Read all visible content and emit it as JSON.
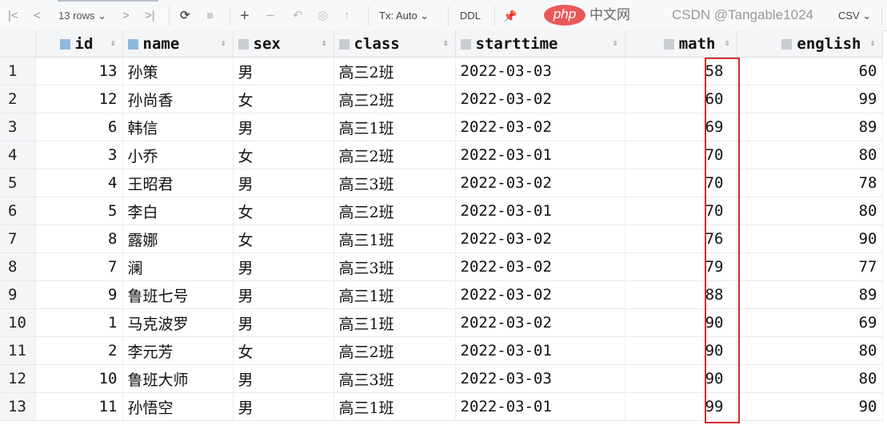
{
  "toolbar": {
    "first": "|<",
    "prev": "<",
    "rows": "13 rows ⌄",
    "next": ">",
    "last": ">|",
    "refresh": "⟳",
    "stop": "■",
    "add": "+",
    "remove": "−",
    "revert": "↶",
    "preview": "◎",
    "submit": "↑",
    "tx": "Tx: Auto ⌄",
    "ddl": "DDL",
    "pin": "📌",
    "export": "CSV ⌄"
  },
  "columns": [
    "id",
    "name",
    "sex",
    "class",
    "starttime",
    "math",
    "english"
  ],
  "rows": [
    [
      "1",
      "13",
      "孙策",
      "男",
      "高三2班",
      "2022-03-03",
      "58",
      "60"
    ],
    [
      "2",
      "12",
      "孙尚香",
      "女",
      "高三2班",
      "2022-03-02",
      "60",
      "99"
    ],
    [
      "3",
      "6",
      "韩信",
      "男",
      "高三1班",
      "2022-03-02",
      "69",
      "89"
    ],
    [
      "4",
      "3",
      "小乔",
      "女",
      "高三2班",
      "2022-03-01",
      "70",
      "80"
    ],
    [
      "5",
      "4",
      "王昭君",
      "男",
      "高三3班",
      "2022-03-02",
      "70",
      "78"
    ],
    [
      "6",
      "5",
      "李白",
      "女",
      "高三2班",
      "2022-03-01",
      "70",
      "80"
    ],
    [
      "7",
      "8",
      "露娜",
      "女",
      "高三1班",
      "2022-03-02",
      "76",
      "90"
    ],
    [
      "8",
      "7",
      "澜",
      "男",
      "高三3班",
      "2022-03-02",
      "79",
      "77"
    ],
    [
      "9",
      "9",
      "鲁班七号",
      "男",
      "高三1班",
      "2022-03-02",
      "88",
      "89"
    ],
    [
      "10",
      "1",
      "马克波罗",
      "男",
      "高三1班",
      "2022-03-02",
      "90",
      "69"
    ],
    [
      "11",
      "2",
      "李元芳",
      "女",
      "高三2班",
      "2022-03-01",
      "90",
      "80"
    ],
    [
      "12",
      "10",
      "鲁班大师",
      "男",
      "高三3班",
      "2022-03-03",
      "90",
      "80"
    ],
    [
      "13",
      "11",
      "孙悟空",
      "男",
      "高三1班",
      "2022-03-01",
      "99",
      "90"
    ]
  ],
  "highlight_color": "#d62b2b",
  "watermark": {
    "csdn": "CSDN @Tangable1024",
    "php": "php",
    "php_cn": "中文网"
  }
}
